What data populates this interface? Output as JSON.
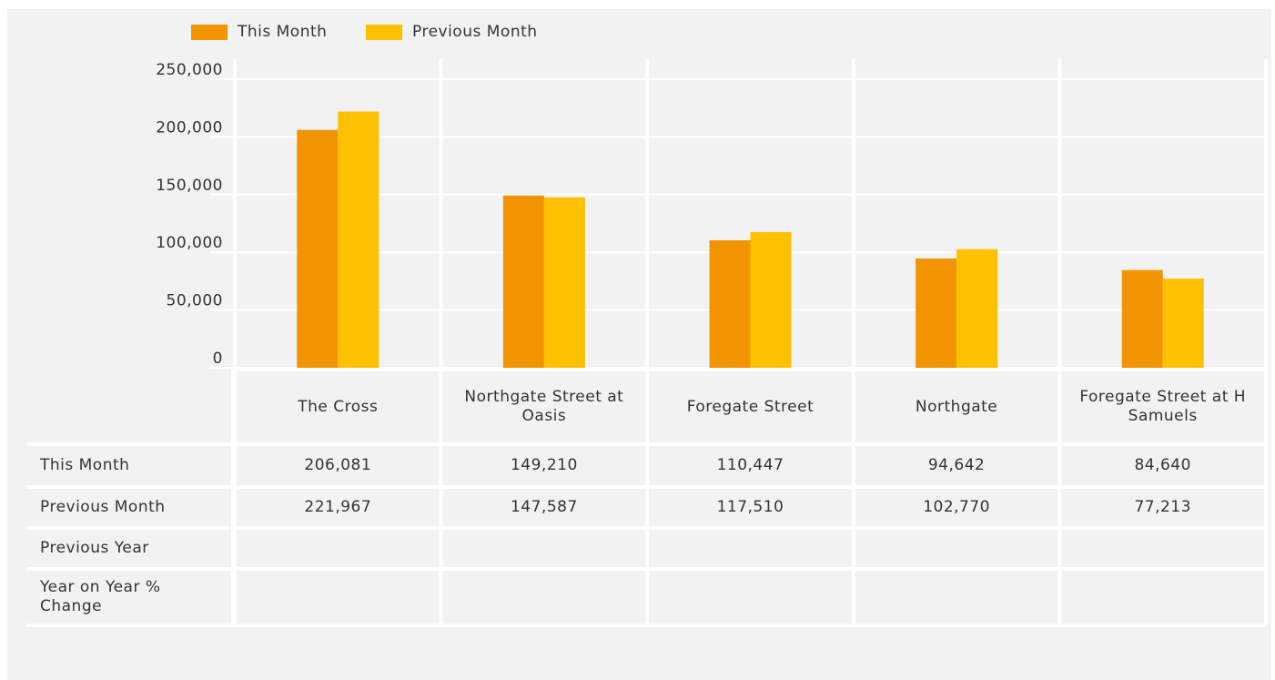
{
  "chart_data": {
    "type": "bar",
    "categories": [
      "The Cross",
      "Northgate Street at Oasis",
      "Foregate Street",
      "Northgate",
      "Foregate Street at H Samuels"
    ],
    "series": [
      {
        "name": "This Month",
        "color": "#f29400",
        "values": [
          206081,
          149210,
          110447,
          94642,
          84640
        ],
        "value_labels": [
          "206,081",
          "149,210",
          "110,447",
          "94,642",
          "84,640"
        ]
      },
      {
        "name": "Previous Month",
        "color": "#ffc000",
        "values": [
          221967,
          147587,
          117510,
          102770,
          77213
        ],
        "value_labels": [
          "221,967",
          "147,587",
          "117,510",
          "102,770",
          "77,213"
        ]
      }
    ],
    "ylim": [
      0,
      250000
    ],
    "yticks": [
      0,
      {
        "value": 50000,
        "label": "50,000"
      },
      {
        "value": 100000,
        "label": "100,000"
      },
      {
        "value": 150000,
        "label": "150,000"
      },
      {
        "value": 200000,
        "label": "200,000"
      },
      {
        "value": 250000,
        "label": "250,000"
      }
    ],
    "grid": true,
    "legend": "top",
    "table_rows": [
      "Previous Year",
      "Year on Year % Change"
    ]
  }
}
